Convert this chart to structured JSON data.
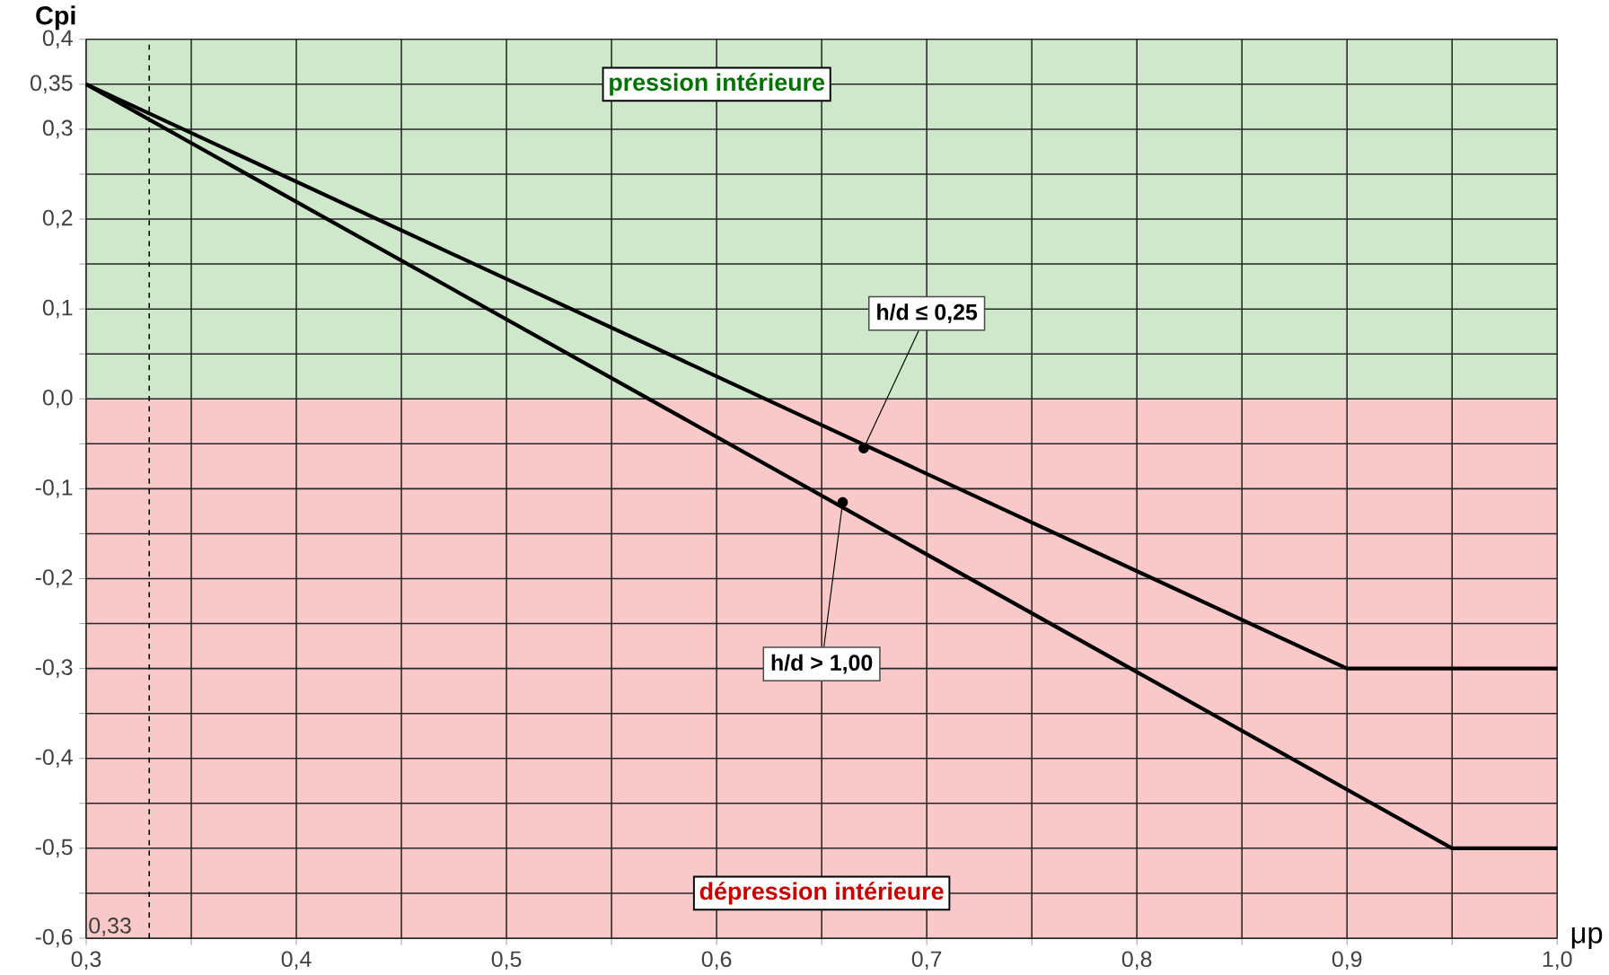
{
  "chart_data": {
    "type": "line",
    "xlabel": "μp",
    "ylabel": "Cpi",
    "xlim": [
      0.3,
      1.0
    ],
    "ylim": [
      -0.6,
      0.4
    ],
    "xticks": [
      {
        "value": 0.3,
        "label": "0,3"
      },
      {
        "value": 0.35,
        "label": null
      },
      {
        "value": 0.4,
        "label": "0,4"
      },
      {
        "value": 0.45,
        "label": null
      },
      {
        "value": 0.5,
        "label": "0,5"
      },
      {
        "value": 0.55,
        "label": null
      },
      {
        "value": 0.6,
        "label": "0,6"
      },
      {
        "value": 0.65,
        "label": null
      },
      {
        "value": 0.7,
        "label": "0,7"
      },
      {
        "value": 0.75,
        "label": null
      },
      {
        "value": 0.8,
        "label": "0,8"
      },
      {
        "value": 0.85,
        "label": null
      },
      {
        "value": 0.9,
        "label": "0,9"
      },
      {
        "value": 0.95,
        "label": null
      },
      {
        "value": 1.0,
        "label": "1,0"
      }
    ],
    "yticks": [
      {
        "value": -0.6,
        "label": "-0,6"
      },
      {
        "value": -0.55,
        "label": null
      },
      {
        "value": -0.5,
        "label": "-0,5"
      },
      {
        "value": -0.45,
        "label": null
      },
      {
        "value": -0.4,
        "label": "-0,4"
      },
      {
        "value": -0.35,
        "label": null
      },
      {
        "value": -0.3,
        "label": "-0,3"
      },
      {
        "value": -0.25,
        "label": null
      },
      {
        "value": -0.2,
        "label": "-0,2"
      },
      {
        "value": -0.15,
        "label": null
      },
      {
        "value": -0.1,
        "label": "-0,1"
      },
      {
        "value": -0.05,
        "label": null
      },
      {
        "value": 0.0,
        "label": "0,0"
      },
      {
        "value": 0.05,
        "label": null
      },
      {
        "value": 0.1,
        "label": "0,1"
      },
      {
        "value": 0.15,
        "label": null
      },
      {
        "value": 0.2,
        "label": "0,2"
      },
      {
        "value": 0.25,
        "label": null
      },
      {
        "value": 0.3,
        "label": "0,3"
      },
      {
        "value": 0.35,
        "label": "0,35"
      },
      {
        "value": 0.4,
        "label": "0,4"
      }
    ],
    "grid": true,
    "marker": "none",
    "line_style": "solid",
    "series": [
      {
        "color": "#000000",
        "x": [
          0.3,
          0.9,
          1.0
        ],
        "values": [
          0.35,
          -0.3,
          -0.3
        ]
      },
      {
        "color": "#000000",
        "x": [
          0.3,
          0.95,
          1.0
        ],
        "values": [
          0.35,
          -0.5,
          -0.5
        ]
      }
    ],
    "bands": [
      {
        "axis": "y",
        "from": 0.0,
        "to": 0.4,
        "label": "pression intérieure",
        "color": "#cfe8cc"
      },
      {
        "axis": "y",
        "from": -0.6,
        "to": 0.0,
        "label": "dépression intérieure",
        "color": "#f9c8c8"
      }
    ],
    "ref_lines": [
      {
        "axis": "x",
        "value": 0.33,
        "label": "0,33",
        "line_style": "dashed",
        "color": "#000000"
      }
    ],
    "annotations": [
      {
        "text": "h/d ≤ 0,25",
        "x": 0.67,
        "y": -0.055
      },
      {
        "text": "h/d > 1,00",
        "x": 0.66,
        "y": -0.115
      }
    ]
  }
}
